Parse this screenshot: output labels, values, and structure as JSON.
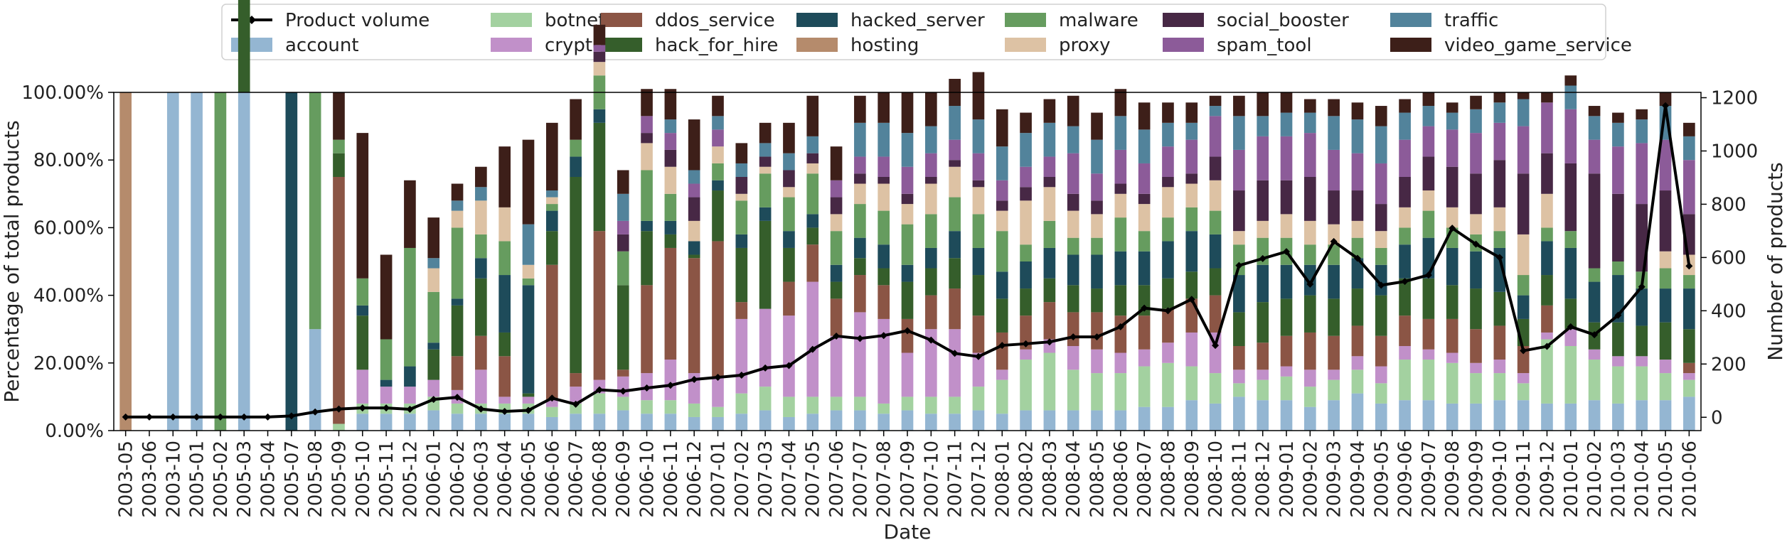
{
  "chart_data": {
    "type": "bar",
    "stacked": true,
    "xlabel": "Date",
    "ylabel_left": "Percentage of total products",
    "ylabel_right": "Number of products",
    "ylim_left": [
      0,
      100
    ],
    "ylim_right": [
      -50,
      1220
    ],
    "yticks_left": [
      "0.00%",
      "20.00%",
      "40.00%",
      "60.00%",
      "80.00%",
      "100.00%"
    ],
    "yticks_right": [
      "0",
      "200",
      "400",
      "600",
      "800",
      "1000",
      "1200"
    ],
    "legend_position": "top",
    "legend_columns": 7,
    "categories": [
      "2003-05",
      "2003-06",
      "2003-10",
      "2005-01",
      "2005-02",
      "2005-03",
      "2005-04",
      "2005-07",
      "2005-08",
      "2005-09",
      "2005-10",
      "2005-11",
      "2005-12",
      "2006-01",
      "2006-02",
      "2006-03",
      "2006-04",
      "2006-05",
      "2006-06",
      "2006-07",
      "2006-08",
      "2006-09",
      "2006-10",
      "2006-11",
      "2006-12",
      "2007-01",
      "2007-02",
      "2007-03",
      "2007-04",
      "2007-05",
      "2007-06",
      "2007-07",
      "2007-08",
      "2007-09",
      "2007-10",
      "2007-11",
      "2007-12",
      "2008-01",
      "2008-02",
      "2008-03",
      "2008-04",
      "2008-05",
      "2008-06",
      "2008-07",
      "2008-08",
      "2008-09",
      "2008-10",
      "2008-11",
      "2008-12",
      "2009-01",
      "2009-02",
      "2009-03",
      "2009-04",
      "2009-05",
      "2009-06",
      "2009-07",
      "2009-08",
      "2009-09",
      "2009-10",
      "2009-11",
      "2009-12",
      "2010-01",
      "2010-02",
      "2010-03",
      "2010-04",
      "2010-05",
      "2010-06"
    ],
    "series": [
      {
        "name": "account",
        "color": "#94b6d2",
        "values": [
          0,
          0,
          100,
          100,
          0,
          100,
          0,
          0,
          30,
          0,
          5,
          5,
          5,
          6,
          5,
          5,
          5,
          5,
          4,
          5,
          5,
          6,
          5,
          5,
          4,
          4,
          5,
          6,
          4,
          5,
          6,
          6,
          5,
          6,
          5,
          5,
          6,
          5,
          6,
          6,
          6,
          6,
          6,
          7,
          7,
          9,
          8,
          10,
          9,
          9,
          7,
          9,
          11,
          8,
          9,
          9,
          8,
          8,
          9,
          9,
          8,
          8,
          9,
          8,
          9,
          9,
          10
        ]
      },
      {
        "name": "botnet",
        "color": "#a3d1a0",
        "values": [
          0,
          0,
          0,
          0,
          0,
          0,
          0,
          0,
          0,
          2,
          3,
          3,
          3,
          4,
          3,
          3,
          3,
          3,
          3,
          3,
          6,
          4,
          4,
          4,
          4,
          3,
          6,
          7,
          6,
          5,
          4,
          4,
          3,
          4,
          5,
          5,
          7,
          10,
          15,
          17,
          12,
          11,
          11,
          12,
          13,
          10,
          9,
          4,
          6,
          7,
          6,
          6,
          7,
          6,
          12,
          12,
          12,
          9,
          8,
          5,
          19,
          17,
          12,
          11,
          10,
          8,
          5
        ]
      },
      {
        "name": "crypter",
        "color": "#c190c9",
        "values": [
          0,
          0,
          0,
          0,
          0,
          0,
          0,
          0,
          0,
          0,
          10,
          5,
          5,
          5,
          4,
          10,
          2,
          2,
          2,
          5,
          4,
          6,
          8,
          12,
          9,
          9,
          22,
          23,
          24,
          34,
          18,
          25,
          25,
          13,
          20,
          20,
          10,
          3,
          3,
          4,
          7,
          7,
          6,
          5,
          6,
          10,
          12,
          4,
          3,
          3,
          5,
          3,
          4,
          5,
          4,
          3,
          3,
          3,
          4,
          3,
          2,
          5,
          3,
          3,
          3,
          4,
          2
        ]
      },
      {
        "name": "ddos_service",
        "color": "#8b5545",
        "values": [
          0,
          0,
          0,
          0,
          0,
          0,
          0,
          0,
          0,
          73,
          0,
          0,
          0,
          0,
          10,
          10,
          12,
          0,
          40,
          4,
          44,
          2,
          26,
          33,
          34,
          40,
          5,
          0,
          10,
          11,
          11,
          11,
          10,
          10,
          10,
          12,
          11,
          11,
          10,
          11,
          10,
          11,
          11,
          10,
          10,
          10,
          11,
          7,
          8,
          9,
          11,
          10,
          9,
          9,
          9,
          9,
          10,
          10,
          10,
          8,
          8,
          0,
          0,
          0,
          0,
          0,
          3
        ]
      },
      {
        "name": "hack_for_hire",
        "color": "#355e2b",
        "values": [
          0,
          0,
          0,
          0,
          0,
          100,
          0,
          0,
          0,
          7,
          16,
          0,
          0,
          9,
          15,
          17,
          7,
          1,
          10,
          58,
          32,
          25,
          16,
          4,
          1,
          15,
          16,
          26,
          10,
          5,
          5,
          5,
          5,
          11,
          8,
          9,
          12,
          10,
          8,
          7,
          8,
          7,
          9,
          9,
          9,
          8,
          8,
          10,
          12,
          11,
          11,
          11,
          11,
          12,
          11,
          12,
          10,
          12,
          10,
          8,
          9,
          9,
          8,
          10,
          9,
          11,
          10
        ]
      },
      {
        "name": "hacked_server",
        "color": "#1e4b5a",
        "values": [
          0,
          0,
          0,
          0,
          0,
          0,
          0,
          100,
          0,
          0,
          3,
          2,
          6,
          2,
          2,
          6,
          17,
          32,
          6,
          6,
          4,
          0,
          3,
          4,
          4,
          3,
          4,
          4,
          5,
          4,
          5,
          6,
          7,
          5,
          6,
          8,
          8,
          8,
          8,
          9,
          9,
          10,
          10,
          10,
          11,
          12,
          10,
          11,
          11,
          10,
          9,
          10,
          9,
          9,
          10,
          12,
          11,
          11,
          13,
          7,
          10,
          15,
          12,
          14,
          11,
          10,
          12
        ]
      },
      {
        "name": "hosting",
        "color": "#b58b6c",
        "values": [
          100,
          0,
          0,
          0,
          0,
          0,
          0,
          0,
          0,
          0,
          0,
          0,
          0,
          0,
          0,
          0,
          0,
          0,
          0,
          0,
          0,
          0,
          0,
          0,
          0,
          0,
          0,
          0,
          0,
          0,
          0,
          0,
          0,
          0,
          0,
          0,
          0,
          0,
          0,
          0,
          0,
          0,
          0,
          0,
          0,
          0,
          0,
          0,
          0,
          0,
          0,
          0,
          0,
          0,
          0,
          0,
          0,
          0,
          0,
          0,
          0,
          0,
          0,
          0,
          0,
          0,
          0
        ]
      },
      {
        "name": "malware",
        "color": "#669c5f",
        "values": [
          0,
          0,
          0,
          0,
          100,
          0,
          0,
          0,
          70,
          4,
          8,
          12,
          35,
          15,
          21,
          7,
          10,
          2,
          2,
          5,
          10,
          10,
          15,
          8,
          0,
          5,
          10,
          10,
          10,
          12,
          10,
          10,
          10,
          12,
          10,
          10,
          10,
          12,
          5,
          8,
          5,
          5,
          10,
          6,
          7,
          7,
          7,
          9,
          8,
          8,
          6,
          6,
          6,
          5,
          5,
          8,
          6,
          5,
          5,
          6,
          4,
          5,
          4,
          4,
          5,
          6,
          4
        ]
      },
      {
        "name": "proxy",
        "color": "#ddc2a4",
        "values": [
          0,
          0,
          0,
          0,
          0,
          0,
          0,
          0,
          0,
          0,
          0,
          0,
          0,
          7,
          5,
          10,
          10,
          4,
          2,
          0,
          4,
          0,
          8,
          8,
          6,
          5,
          2,
          2,
          3,
          3,
          5,
          6,
          8,
          6,
          9,
          9,
          8,
          6,
          13,
          10,
          8,
          7,
          7,
          8,
          9,
          7,
          9,
          4,
          5,
          7,
          7,
          6,
          5,
          5,
          6,
          6,
          6,
          6,
          7,
          12,
          10,
          0,
          0,
          0,
          0,
          5,
          6
        ]
      },
      {
        "name": "social_booster",
        "color": "#472845",
        "values": [
          0,
          0,
          0,
          0,
          0,
          0,
          0,
          0,
          0,
          0,
          0,
          0,
          0,
          0,
          0,
          0,
          0,
          0,
          0,
          0,
          3,
          5,
          3,
          5,
          7,
          0,
          5,
          3,
          5,
          3,
          5,
          3,
          2,
          3,
          2,
          2,
          2,
          3,
          4,
          3,
          5,
          4,
          3,
          3,
          3,
          3,
          7,
          12,
          12,
          10,
          13,
          10,
          9,
          8,
          9,
          10,
          12,
          12,
          14,
          18,
          12,
          20,
          28,
          20,
          20,
          18,
          12
        ]
      },
      {
        "name": "spam_tool",
        "color": "#8c5b99",
        "values": [
          0,
          0,
          0,
          0,
          0,
          0,
          0,
          0,
          0,
          0,
          0,
          0,
          0,
          0,
          0,
          0,
          0,
          0,
          0,
          0,
          2,
          4,
          5,
          5,
          4,
          5,
          0,
          0,
          0,
          0,
          5,
          5,
          6,
          8,
          7,
          6,
          8,
          6,
          6,
          6,
          12,
          8,
          10,
          9,
          9,
          10,
          12,
          12,
          13,
          13,
          13,
          12,
          11,
          12,
          11,
          9,
          11,
          12,
          11,
          14,
          15,
          16,
          10,
          14,
          18,
          15,
          16
        ]
      },
      {
        "name": "traffic",
        "color": "#52839b",
        "values": [
          0,
          0,
          0,
          0,
          0,
          0,
          0,
          0,
          0,
          0,
          0,
          0,
          0,
          3,
          3,
          4,
          0,
          12,
          2,
          0,
          0,
          8,
          0,
          4,
          4,
          4,
          4,
          4,
          5,
          5,
          0,
          10,
          10,
          10,
          8,
          10,
          10,
          10,
          10,
          10,
          8,
          10,
          10,
          10,
          7,
          5,
          3,
          10,
          6,
          7,
          6,
          10,
          10,
          11,
          8,
          6,
          5,
          7,
          6,
          8,
          0,
          7,
          7,
          7,
          7,
          10,
          7
        ]
      },
      {
        "name": "video_game_service",
        "color": "#3d1f19",
        "values": [
          0,
          0,
          0,
          0,
          0,
          0,
          0,
          0,
          0,
          14,
          43,
          25,
          20,
          12,
          5,
          6,
          18,
          25,
          20,
          12,
          6,
          7,
          8,
          9,
          15,
          6,
          6,
          6,
          9,
          12,
          10,
          8,
          9,
          12,
          10,
          8,
          14,
          11,
          6,
          7,
          9,
          8,
          8,
          8,
          6,
          6,
          3,
          6,
          7,
          6,
          4,
          5,
          5,
          6,
          4,
          4,
          3,
          4,
          3,
          2,
          3,
          3,
          3,
          3,
          3,
          4,
          4
        ]
      }
    ],
    "line": {
      "name": "Product volume",
      "color": "#000000",
      "values": [
        1,
        1,
        1,
        1,
        1,
        1,
        1,
        5,
        20,
        31,
        35,
        35,
        30,
        67,
        75,
        31,
        22,
        26,
        72,
        49,
        103,
        98,
        110,
        120,
        142,
        150,
        158,
        185,
        194,
        255,
        305,
        296,
        307,
        325,
        290,
        240,
        228,
        270,
        276,
        283,
        302,
        302,
        340,
        410,
        400,
        443,
        270,
        570,
        596,
        622,
        500,
        660,
        597,
        496,
        510,
        534,
        710,
        650,
        600,
        250,
        266,
        340,
        310,
        383,
        490,
        1170,
        568
      ]
    },
    "legend": [
      "Product volume",
      "account",
      "botnet",
      "crypter",
      "ddos_service",
      "hack_for_hire",
      "hacked_server",
      "hosting",
      "malware",
      "proxy",
      "social_booster",
      "spam_tool",
      "traffic",
      "video_game_service"
    ]
  }
}
